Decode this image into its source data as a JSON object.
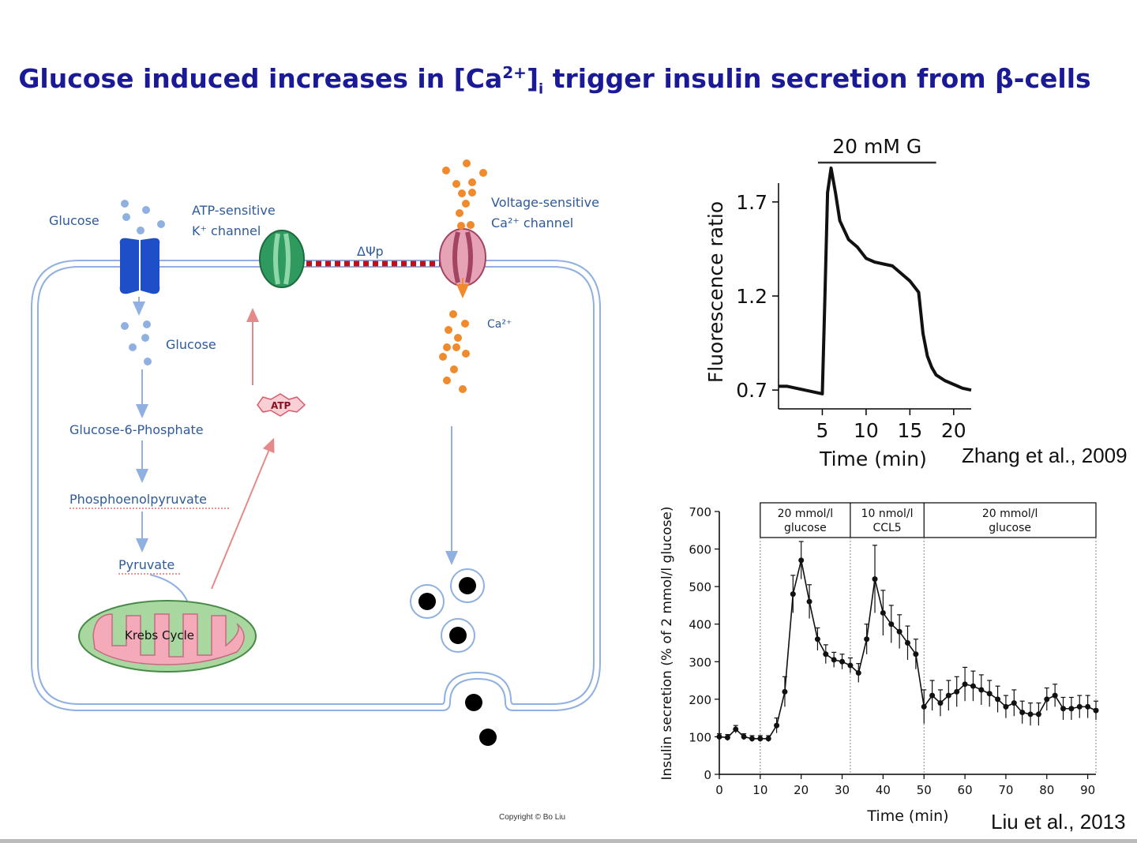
{
  "slide": {
    "title_main": "Glucose induced increases in [Ca",
    "title_sup": "2+",
    "title_bracket": "]",
    "title_sub": "i",
    "title_rest": " trigger insulin secretion from β-cells",
    "copyright": "Copyright © Bo Liu"
  },
  "diagram": {
    "glucose_out": "Glucose",
    "katp_line1": "ATP-sensitive",
    "katp_line2": "K⁺ channel",
    "delta_psi": "ΔΨp",
    "vgcc_line1": "Voltage-sensitive",
    "vgcc_line2": "Ca²⁺ channel",
    "glucose_in": "Glucose",
    "ca_label": "Ca²⁺",
    "g6p": "Glucose-6-Phosphate",
    "pep": "Phosphoenolpyruvate",
    "pyruvate": "Pyruvate",
    "atp": "ATP",
    "krebs": "Krebs Cycle"
  },
  "colors": {
    "title": "#1a1a96",
    "label_blue": "#2e5a9c",
    "membrane": "#8fb0e0",
    "dots_blue": "#8fb0e0",
    "ca_orange": "#f08a2c",
    "glut": "#1f4fc8",
    "katp": "#2f9a5e",
    "vgcc": "#d06a86",
    "mito_fill": "#a8d8a0",
    "mito_inner": "#f4aab8",
    "arrow_red": "#e58a8a",
    "dash_red": "#c0101a"
  },
  "chart_data": [
    {
      "type": "line",
      "title": "",
      "bar_label": "20 mM G",
      "bar_range": [
        4.5,
        18
      ],
      "xlabel": "Time (min)",
      "ylabel": "Fluorescence ratio",
      "xticks": [
        5,
        10,
        15,
        20
      ],
      "yticks": [
        0.7,
        1.2,
        1.7
      ],
      "xlim": [
        0,
        22
      ],
      "ylim": [
        0.6,
        1.8
      ],
      "citation": "Zhang et al., 2009",
      "series": [
        {
          "name": "ratio",
          "x": [
            0,
            1,
            2,
            3,
            4,
            5,
            5.3,
            5.6,
            6,
            6.5,
            7,
            8,
            9,
            10,
            11,
            12,
            13,
            14,
            15,
            16,
            16.5,
            17,
            17.5,
            18,
            19,
            20,
            21,
            22
          ],
          "y": [
            0.72,
            0.72,
            0.71,
            0.7,
            0.69,
            0.68,
            1.2,
            1.75,
            1.88,
            1.75,
            1.6,
            1.5,
            1.46,
            1.4,
            1.38,
            1.37,
            1.36,
            1.32,
            1.28,
            1.22,
            1.0,
            0.88,
            0.82,
            0.78,
            0.75,
            0.73,
            0.71,
            0.7
          ]
        }
      ]
    },
    {
      "type": "line",
      "xlabel": "Time (min)",
      "ylabel": "Insulin secretion (% of 2 mmol/l glucose)",
      "xticks": [
        0,
        10,
        20,
        30,
        40,
        50,
        60,
        70,
        80,
        90
      ],
      "yticks": [
        0,
        100,
        200,
        300,
        400,
        500,
        600,
        700
      ],
      "xlim": [
        0,
        92
      ],
      "ylim": [
        0,
        700
      ],
      "citation": "Liu et al., 2013",
      "segments": [
        {
          "label_line1": "20 mmol/l",
          "label_line2": "glucose",
          "from": 10,
          "to": 32
        },
        {
          "label_line1": "10 nmol/l",
          "label_line2": "CCL5",
          "from": 32,
          "to": 50
        },
        {
          "label_line1": "20 mmol/l",
          "label_line2": "glucose",
          "from": 50,
          "to": 92
        }
      ],
      "series": [
        {
          "name": "insulin",
          "x": [
            0,
            2,
            4,
            6,
            8,
            10,
            12,
            14,
            16,
            18,
            20,
            22,
            24,
            26,
            28,
            30,
            32,
            34,
            36,
            38,
            40,
            42,
            44,
            46,
            48,
            50,
            52,
            54,
            56,
            58,
            60,
            62,
            64,
            66,
            68,
            70,
            72,
            74,
            76,
            78,
            80,
            82,
            84,
            86,
            88,
            90,
            92
          ],
          "y": [
            100,
            98,
            120,
            100,
            95,
            95,
            95,
            130,
            220,
            480,
            570,
            460,
            360,
            320,
            305,
            300,
            290,
            270,
            360,
            520,
            430,
            400,
            380,
            350,
            320,
            180,
            210,
            190,
            210,
            220,
            240,
            235,
            225,
            215,
            200,
            180,
            190,
            165,
            160,
            160,
            200,
            210,
            175,
            175,
            180,
            180,
            170
          ],
          "err": [
            8,
            8,
            10,
            8,
            8,
            8,
            8,
            20,
            40,
            50,
            50,
            45,
            30,
            25,
            20,
            20,
            20,
            25,
            40,
            90,
            60,
            50,
            45,
            45,
            40,
            45,
            40,
            35,
            40,
            40,
            45,
            40,
            40,
            35,
            35,
            30,
            35,
            30,
            30,
            30,
            30,
            30,
            30,
            30,
            30,
            30,
            25
          ]
        }
      ]
    }
  ]
}
